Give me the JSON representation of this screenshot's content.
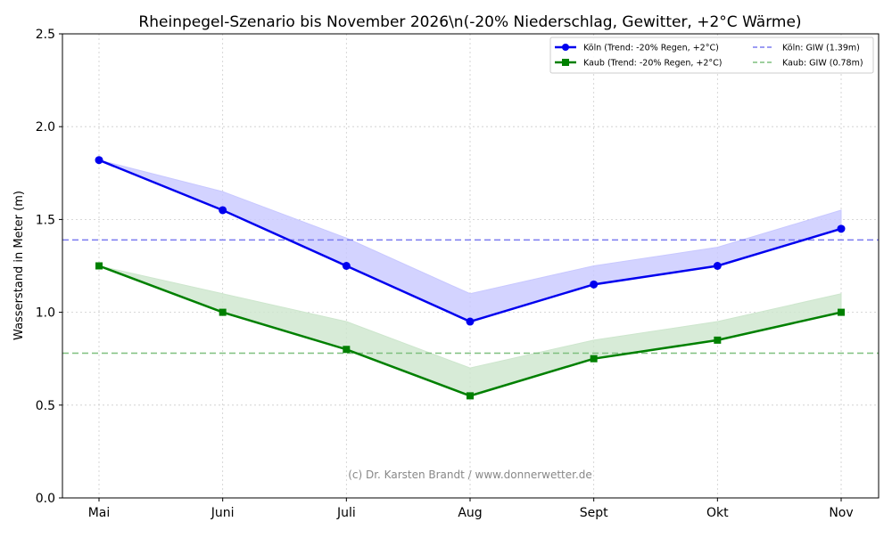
{
  "chart_data": {
    "type": "line",
    "title": "Rheinpegel-Szenario bis November 2026\\n(-20% Niederschlag, Gewitter, +2°C Wärme)",
    "xlabel": "",
    "ylabel": "Wasserstand in Meter (m)",
    "categories": [
      "Mai",
      "Juni",
      "Juli",
      "Aug",
      "Sept",
      "Okt",
      "Nov"
    ],
    "ylim": [
      0,
      2.5
    ],
    "yticks": [
      "0.0",
      "0.5",
      "1.0",
      "1.5",
      "2.0",
      "2.5"
    ],
    "grid": true,
    "legend_position": "top-right",
    "series": [
      {
        "name": "Köln (Trend: -20% Regen, +2°C)",
        "color": "#0000ee",
        "marker": "circle",
        "values": [
          1.82,
          1.55,
          1.25,
          0.95,
          1.15,
          1.25,
          1.45
        ],
        "band_upper": [
          1.82,
          1.65,
          1.4,
          1.1,
          1.25,
          1.35,
          1.55
        ],
        "band_color": "#c8c8ff"
      },
      {
        "name": "Kaub (Trend: -20% Regen, +2°C)",
        "color": "#008000",
        "marker": "square",
        "values": [
          1.25,
          1.0,
          0.8,
          0.55,
          0.75,
          0.85,
          1.0
        ],
        "band_upper": [
          1.25,
          1.1,
          0.95,
          0.7,
          0.85,
          0.95,
          1.1
        ],
        "band_color": "#cde6cd"
      }
    ],
    "reference_lines": [
      {
        "name": "Köln: GIW (1.39m)",
        "value": 1.39,
        "color": "#7b7bf0"
      },
      {
        "name": "Kaub: GIW (0.78m)",
        "value": 0.78,
        "color": "#7fbf7f"
      }
    ],
    "annotation": "(c) Dr. Karsten Brandt / www.donnerwetter.de"
  }
}
